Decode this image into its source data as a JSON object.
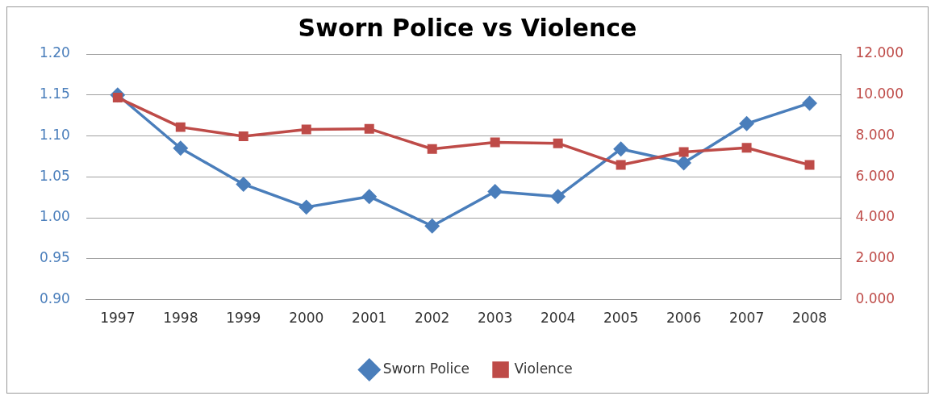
{
  "chart_data": {
    "type": "line",
    "title": "Sworn Police vs Violence",
    "categories": [
      "1997",
      "1998",
      "1999",
      "2000",
      "2001",
      "2002",
      "2003",
      "2004",
      "2005",
      "2006",
      "2007",
      "2008"
    ],
    "series": [
      {
        "name": "Sworn Police",
        "color": "#4a7ebb",
        "marker": "diamond",
        "values": [
          1.15,
          1.085,
          1.041,
          1.013,
          1.026,
          0.99,
          1.032,
          1.026,
          1.084,
          1.067,
          1.115,
          1.14
        ]
      },
      {
        "name": "Violence",
        "color": "#be4b48",
        "marker": "square",
        "axis": "y2",
        "values": [
          9.87,
          8.43,
          7.98,
          8.32,
          8.35,
          7.36,
          7.69,
          7.64,
          6.58,
          7.21,
          7.42,
          6.58
        ]
      }
    ],
    "ylim": [
      0.9,
      1.2
    ],
    "yticks": [
      {
        "value": 0.9,
        "label": "0.90"
      },
      {
        "value": 0.95,
        "label": "0.95"
      },
      {
        "value": 1,
        "label": "1.00"
      },
      {
        "value": 1.05,
        "label": "1.05"
      },
      {
        "value": 1.1,
        "label": "1.10"
      },
      {
        "value": 1.15,
        "label": "1.15"
      },
      {
        "value": 1.2,
        "label": "1.20"
      }
    ],
    "y2lim": [
      0,
      12
    ],
    "y2ticks": [
      {
        "value": 0,
        "label": "0.000"
      },
      {
        "value": 2,
        "label": "2.000"
      },
      {
        "value": 4,
        "label": "4.000"
      },
      {
        "value": 6,
        "label": "6.000"
      },
      {
        "value": 8,
        "label": "8.000"
      },
      {
        "value": 10,
        "label": "10.000"
      },
      {
        "value": 12,
        "label": "12.000"
      }
    ],
    "grid": "y",
    "legend": "bottom"
  }
}
